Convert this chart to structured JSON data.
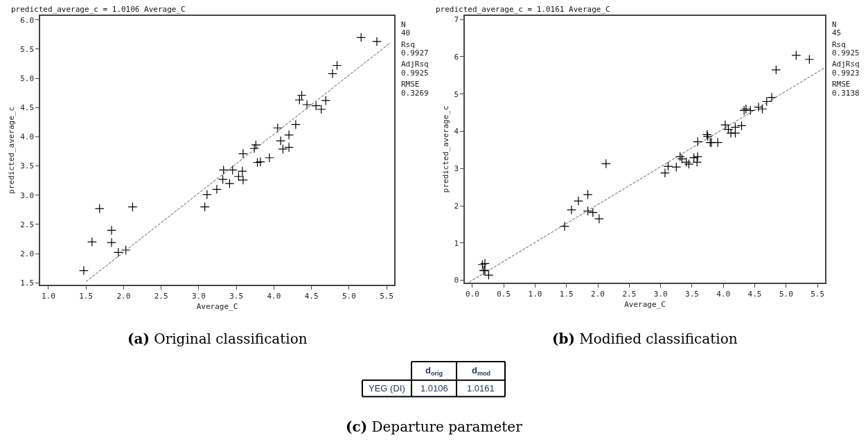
{
  "chart_data": [
    {
      "type": "scatter",
      "title": "predicted_average_c = 1.0106 Average_C",
      "xlabel": "Average_C",
      "ylabel": "predicted_average_c",
      "xlim": [
        0.89,
        5.6
      ],
      "ylim": [
        1.47,
        6.07
      ],
      "xticks": [
        {
          "value": 1,
          "label": "1.0"
        },
        1.5,
        {
          "value": 2,
          "label": "2.0"
        },
        2.5,
        {
          "value": 3,
          "label": "3.0"
        },
        3.5,
        {
          "value": 4,
          "label": "4.0"
        },
        4.5,
        {
          "value": 5,
          "label": "5.0"
        },
        5.5
      ],
      "yticks": [
        1.5,
        {
          "value": 2,
          "label": "2.0"
        },
        2.5,
        {
          "value": 3,
          "label": "3.0"
        },
        3.5,
        {
          "value": 4,
          "label": "4.0"
        },
        4.5,
        {
          "value": 5,
          "label": "5.0"
        },
        5.5,
        {
          "value": 6,
          "label": "6.0"
        }
      ],
      "series": [
        {
          "type": "scatter",
          "color": "#000000",
          "marker": "cross",
          "x": [
            1.47,
            1.58,
            1.68,
            1.84,
            1.84,
            1.93,
            2.03,
            2.12,
            3.08,
            3.11,
            3.24,
            3.32,
            3.33,
            3.41,
            3.45,
            3.53,
            3.58,
            3.59,
            3.59,
            3.74,
            3.76,
            3.78,
            3.82,
            3.94,
            4.05,
            4.09,
            4.12,
            4.2,
            4.2,
            4.29,
            4.34,
            4.37,
            4.44,
            4.56,
            4.63,
            4.69,
            4.78,
            4.84,
            5.16,
            5.37
          ],
          "values": [
            1.71,
            2.2,
            2.77,
            2.4,
            2.19,
            2.02,
            2.06,
            2.8,
            2.8,
            3.01,
            3.1,
            3.27,
            3.43,
            3.2,
            3.43,
            3.32,
            3.41,
            3.26,
            3.71,
            3.8,
            3.86,
            3.56,
            3.57,
            3.64,
            4.15,
            3.93,
            3.79,
            4.03,
            3.82,
            4.21,
            4.63,
            4.71,
            4.55,
            4.53,
            4.47,
            4.62,
            5.08,
            5.22,
            5.7,
            5.63
          ]
        },
        {
          "type": "line",
          "color": "#555555",
          "line_style": "dashed",
          "x": [
            1.5,
            5.55
          ],
          "values": [
            1.52,
            5.61
          ]
        }
      ],
      "annotations": [
        "(a) Original classification",
        "N",
        "40",
        "Rsq",
        "0.9927",
        "AdjRsq",
        "0.9925",
        "RMSE",
        "0.3269"
      ]
    },
    {
      "type": "scatter",
      "title": "predicted_average_c = 1.0161 Average_C",
      "xlabel": "Average_C",
      "ylabel": "predicted_average_c",
      "xlim": [
        -0.12,
        5.62
      ],
      "ylim": [
        -0.06,
        7.1
      ],
      "xticks": [
        {
          "value": 0,
          "label": "0.0"
        },
        0.5,
        {
          "value": 1,
          "label": "1.0"
        },
        1.5,
        {
          "value": 2,
          "label": "2.0"
        },
        2.5,
        {
          "value": 3,
          "label": "3.0"
        },
        3.5,
        {
          "value": 4,
          "label": "4.0"
        },
        4.5,
        {
          "value": 5,
          "label": "5.0"
        },
        5.5
      ],
      "yticks": [
        0,
        1,
        2,
        3,
        4,
        5,
        6,
        7
      ],
      "series": [
        {
          "type": "scatter",
          "color": "#000000",
          "marker": "cross",
          "x": [
            0.16,
            0.2,
            0.18,
            0.2,
            0.26,
            1.47,
            1.58,
            1.69,
            1.84,
            1.84,
            1.92,
            2.02,
            2.13,
            3.07,
            3.12,
            3.25,
            3.31,
            3.34,
            3.41,
            3.45,
            3.53,
            3.59,
            3.58,
            3.59,
            3.74,
            3.75,
            3.79,
            3.81,
            3.91,
            4.03,
            4.08,
            4.12,
            4.19,
            4.19,
            4.29,
            4.33,
            4.36,
            4.43,
            4.56,
            4.62,
            4.69,
            4.77,
            4.84,
            5.16,
            5.37
          ],
          "values": [
            0.42,
            0.45,
            0.26,
            0.27,
            0.14,
            1.45,
            1.89,
            2.13,
            2.3,
            1.86,
            1.82,
            1.65,
            3.13,
            2.88,
            3.06,
            3.04,
            3.32,
            3.26,
            3.17,
            3.12,
            3.29,
            3.32,
            3.17,
            3.72,
            3.91,
            3.86,
            3.7,
            3.7,
            3.7,
            4.17,
            4.05,
            3.95,
            4.11,
            3.95,
            4.15,
            4.56,
            4.6,
            4.56,
            4.65,
            4.6,
            4.8,
            4.91,
            5.65,
            6.04,
            5.93
          ]
        },
        {
          "type": "line",
          "color": "#555555",
          "line_style": "dashed",
          "x": [
            -0.05,
            5.6
          ],
          "values": [
            -0.05,
            5.69
          ]
        }
      ],
      "annotations": [
        "(b) Modified classification",
        "N",
        "45",
        "Rsq",
        "0.9925",
        "AdjRsq",
        "0.9923",
        "RMSE",
        "0.3138"
      ]
    },
    {
      "type": "other",
      "annotations": [
        "d$_{orig}$",
        "d$_{mod}$",
        "YEG (DI)",
        "1.0106",
        "1.0161",
        "(c) Departure parameter"
      ]
    }
  ]
}
